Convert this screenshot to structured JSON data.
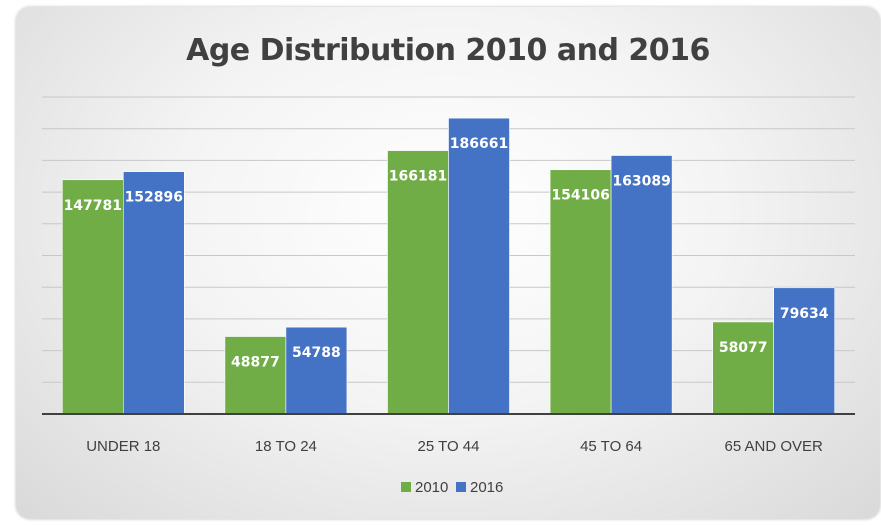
{
  "chart_data": {
    "type": "bar",
    "title": "Age Distribution 2010 and 2016",
    "categories": [
      "UNDER 18",
      "18 TO 24",
      "25 TO 44",
      "45 TO 64",
      "65 AND OVER"
    ],
    "series": [
      {
        "name": "2010",
        "color": "#70ad47",
        "values": [
          147781,
          48877,
          166181,
          154106,
          58077
        ]
      },
      {
        "name": "2016",
        "color": "#4472c4",
        "values": [
          152896,
          54788,
          186661,
          163089,
          79634
        ]
      }
    ],
    "ylim": [
      0,
      200000
    ],
    "grid": true,
    "y_axis_labels_shown": false,
    "legend_position": "bottom",
    "data_labels": "inside-end, white bold"
  }
}
